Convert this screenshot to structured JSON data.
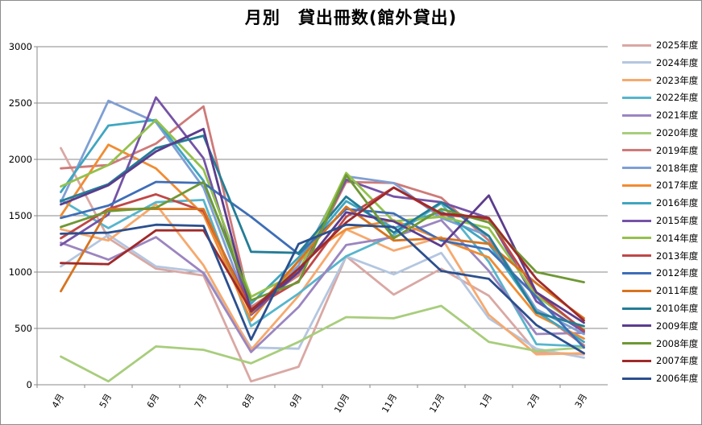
{
  "chart_data": {
    "type": "line",
    "title": "月別　貸出冊数(館外貸出)",
    "xlabel": "",
    "ylabel": "",
    "ylim": [
      0,
      3000
    ],
    "yticks": [
      0,
      500,
      1000,
      1500,
      2000,
      2500,
      3000
    ],
    "grid": true,
    "legend_position": "right",
    "categories": [
      "4月",
      "5月",
      "6月",
      "7月",
      "8月",
      "9月",
      "10月",
      "11月",
      "12月",
      "1月",
      "2月",
      "3月"
    ],
    "series": [
      {
        "name": "2025年度",
        "color": "#d9a8a4",
        "values": [
          2100,
          1300,
          1030,
          970,
          30,
          160,
          1140,
          800,
          1030,
          790,
          290,
          270
        ]
      },
      {
        "name": "2024年度",
        "color": "#b4c6e0",
        "values": [
          1050,
          1330,
          1050,
          1000,
          330,
          320,
          1140,
          980,
          1170,
          590,
          320,
          240
        ]
      },
      {
        "name": "2023年度",
        "color": "#f6a96e",
        "values": [
          1380,
          1280,
          1600,
          1060,
          310,
          790,
          1380,
          1190,
          1310,
          620,
          270,
          280
        ]
      },
      {
        "name": "2022年度",
        "color": "#56b5cc",
        "values": [
          1640,
          1390,
          1620,
          1640,
          520,
          810,
          1140,
          1330,
          1610,
          1090,
          360,
          340
        ]
      },
      {
        "name": "2021年度",
        "color": "#9b85c0",
        "values": [
          1260,
          1110,
          1310,
          990,
          290,
          690,
          1240,
          1310,
          1460,
          1010,
          450,
          460
        ]
      },
      {
        "name": "2020年度",
        "color": "#a8cd7c",
        "values": [
          250,
          30,
          340,
          310,
          190,
          380,
          600,
          590,
          700,
          380,
          300,
          330
        ]
      },
      {
        "name": "2019年度",
        "color": "#ce7a78",
        "values": [
          1920,
          1950,
          2140,
          2470,
          690,
          970,
          1800,
          1790,
          1660,
          1280,
          660,
          350
        ]
      },
      {
        "name": "2018年度",
        "color": "#7f9fd3",
        "values": [
          1620,
          2520,
          2330,
          1750,
          630,
          1060,
          1850,
          1790,
          1480,
          1320,
          670,
          450
        ]
      },
      {
        "name": "2017年度",
        "color": "#f08c33",
        "values": [
          1500,
          2130,
          1920,
          1510,
          570,
          1100,
          1380,
          1460,
          1290,
          1130,
          620,
          410
        ]
      },
      {
        "name": "2016年度",
        "color": "#3fa6c1",
        "values": [
          1710,
          2300,
          2350,
          1810,
          720,
          1130,
          1630,
          1390,
          1540,
          1250,
          650,
          380
        ]
      },
      {
        "name": "2015年度",
        "color": "#7553a6",
        "values": [
          1240,
          1510,
          2550,
          2010,
          620,
          1000,
          1820,
          1670,
          1620,
          1480,
          740,
          470
        ]
      },
      {
        "name": "2014年度",
        "color": "#93c14c",
        "values": [
          1760,
          1950,
          2350,
          1910,
          780,
          1000,
          1880,
          1450,
          1490,
          1390,
          790,
          490
        ]
      },
      {
        "name": "2013年度",
        "color": "#c04747",
        "values": [
          1300,
          1560,
          1690,
          1540,
          670,
          920,
          1490,
          1750,
          1510,
          1470,
          820,
          480
        ]
      },
      {
        "name": "2012年度",
        "color": "#3e6eb7",
        "values": [
          1480,
          1590,
          1800,
          1790,
          1490,
          1160,
          1560,
          1520,
          1280,
          1200,
          780,
          330
        ]
      },
      {
        "name": "2011年度",
        "color": "#d7741f",
        "values": [
          830,
          1560,
          1560,
          1560,
          630,
          1100,
          1580,
          1280,
          1300,
          1250,
          900,
          590
        ]
      },
      {
        "name": "2010年度",
        "color": "#237d96",
        "values": [
          1630,
          1780,
          2100,
          2210,
          1180,
          1170,
          1670,
          1350,
          1620,
          1320,
          640,
          520
        ]
      },
      {
        "name": "2009年度",
        "color": "#5b3c8d",
        "values": [
          1600,
          1770,
          2070,
          2270,
          650,
          1000,
          1530,
          1450,
          1230,
          1680,
          820,
          550
        ]
      },
      {
        "name": "2008年度",
        "color": "#6e9834",
        "values": [
          1400,
          1540,
          1570,
          1800,
          750,
          910,
          1860,
          1300,
          1560,
          1440,
          1000,
          910
        ]
      },
      {
        "name": "2007年度",
        "color": "#9f2a2a",
        "values": [
          1080,
          1070,
          1370,
          1370,
          660,
          1030,
          1440,
          1750,
          1520,
          1480,
          940,
          570
        ]
      },
      {
        "name": "2006年度",
        "color": "#2b4f8e",
        "values": [
          1340,
          1350,
          1420,
          1410,
          400,
          1250,
          1420,
          1400,
          1010,
          940,
          530,
          280
        ]
      }
    ]
  }
}
